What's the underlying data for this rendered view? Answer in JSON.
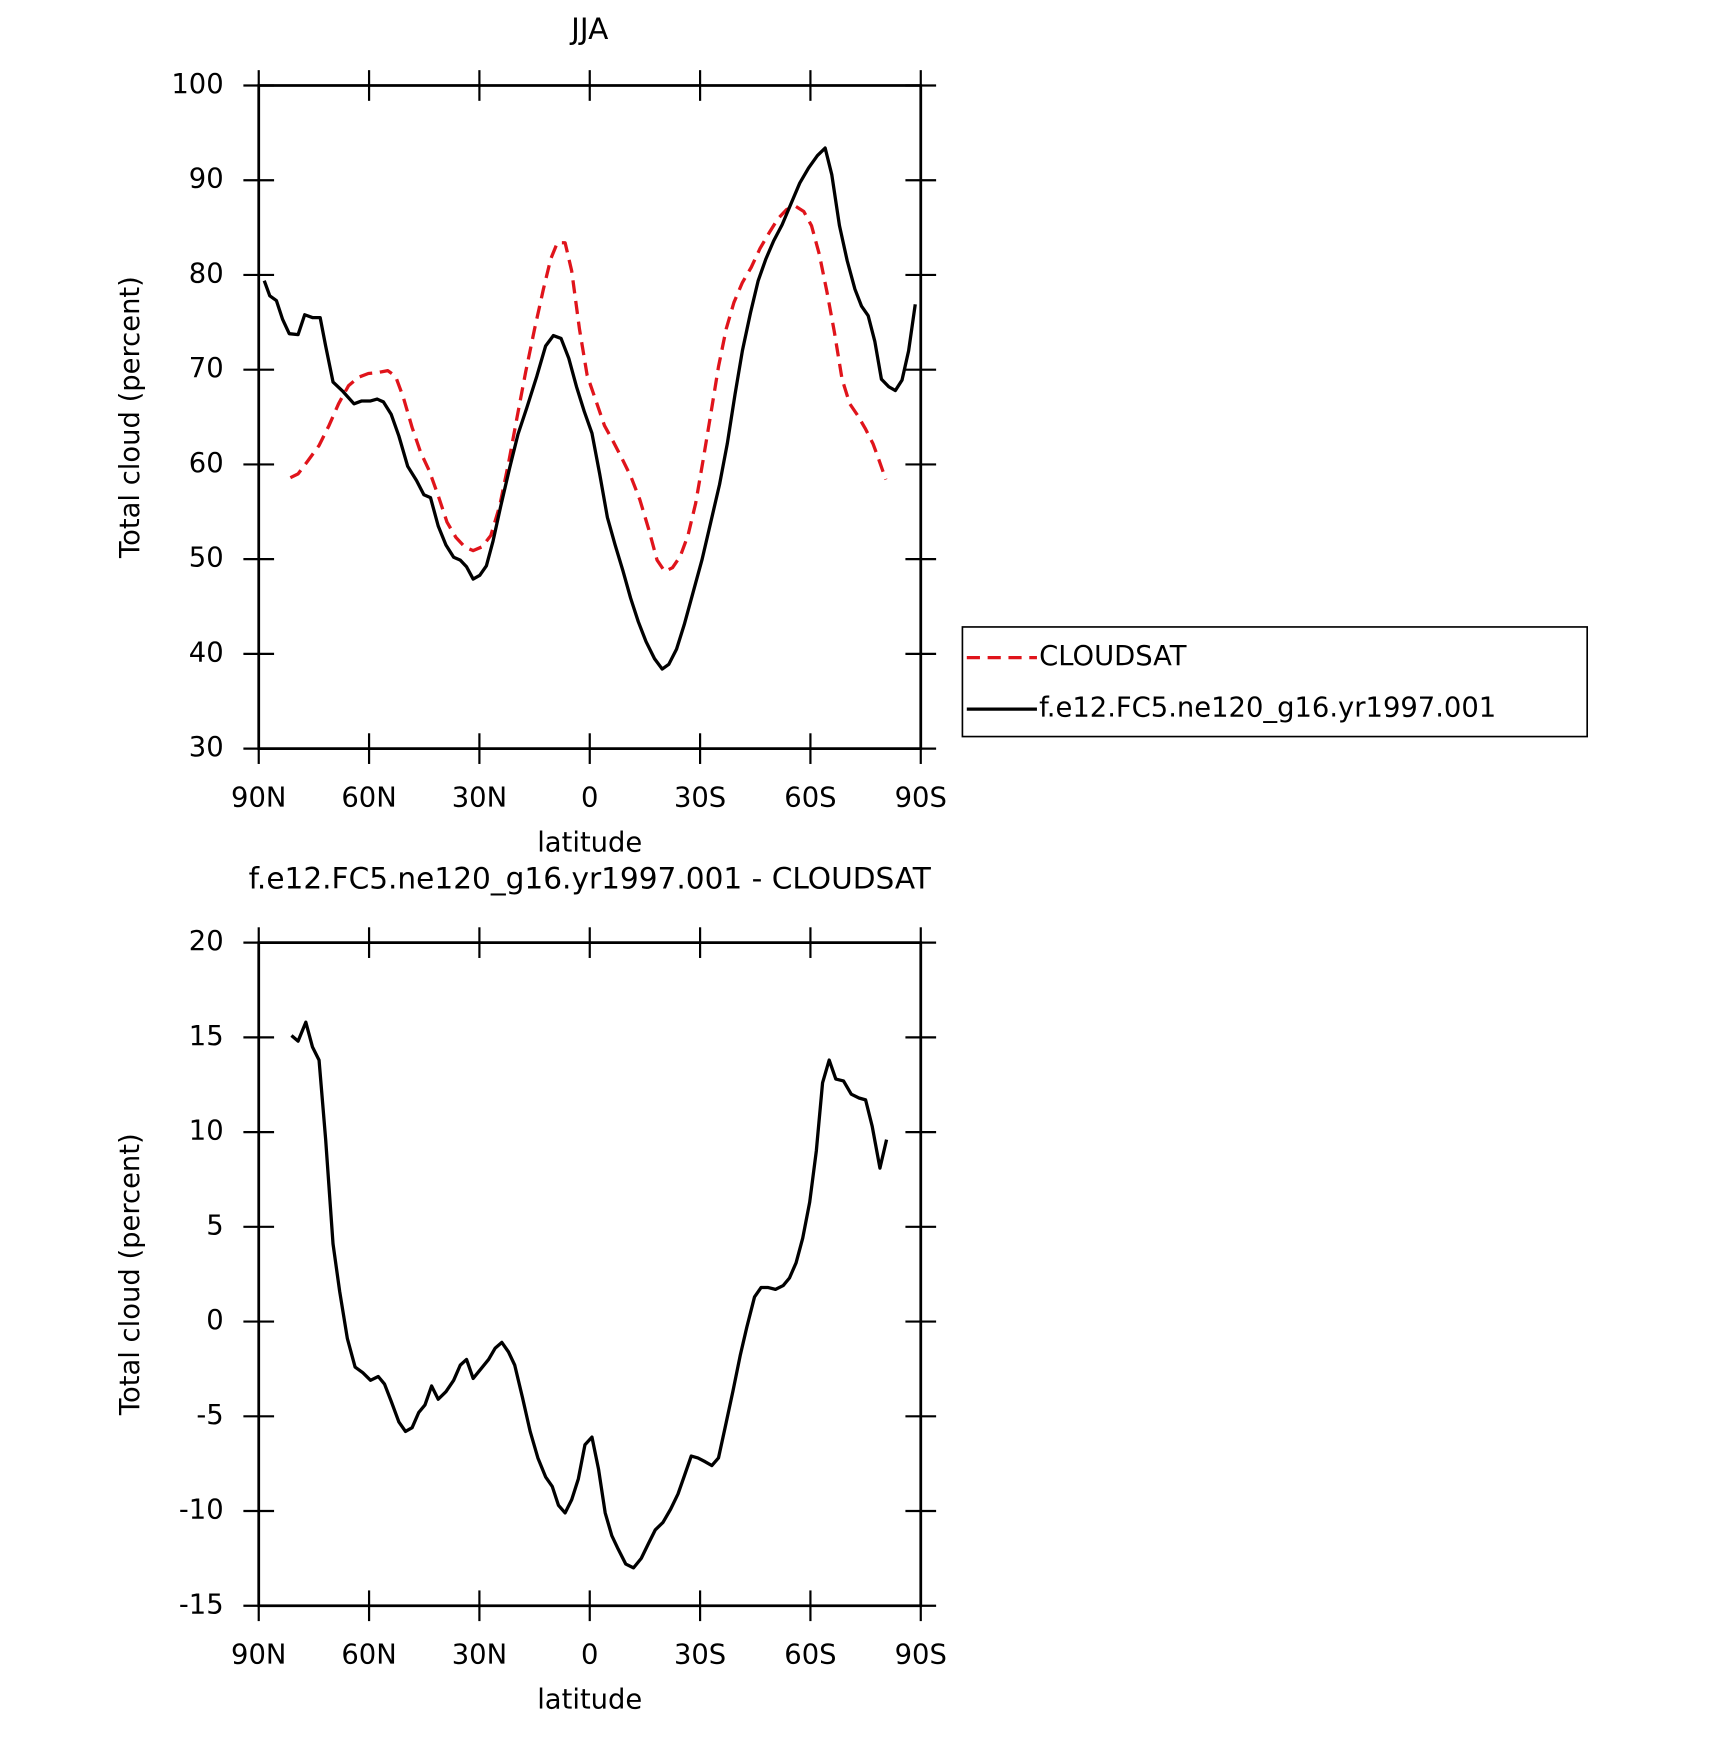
{
  "chart_data": [
    {
      "type": "line",
      "title": "JJA",
      "ylabel": "Total cloud (percent)",
      "xlabel": "latitude",
      "xlim": [
        90,
        -90
      ],
      "ylim": [
        30,
        100
      ],
      "xticks": [
        {
          "value": 90,
          "label": "90N"
        },
        {
          "value": 60,
          "label": "60N"
        },
        {
          "value": 30,
          "label": "30N"
        },
        0,
        {
          "value": -30,
          "label": "30S"
        },
        {
          "value": -60,
          "label": "60S"
        },
        {
          "value": -90,
          "label": "90S"
        }
      ],
      "yticks": [
        30,
        40,
        50,
        60,
        70,
        80,
        90,
        100
      ],
      "legend": "outside right",
      "series": [
        {
          "name": "CLOUDSAT",
          "color": "#e0141b",
          "style": "dashed",
          "x": [
            81.4,
            79.3,
            76.6,
            73.6,
            70.9,
            68.3,
            65.6,
            62.9,
            60.2,
            57.6,
            54.9,
            52.8,
            50.7,
            48.3,
            46.0,
            43.6,
            41.2,
            38.8,
            36.4,
            34.0,
            31.7,
            29.3,
            26.9,
            24.5,
            22.1,
            19.8,
            17.4,
            15.0,
            12.6,
            10.6,
            8.8,
            6.7,
            4.9,
            2.8,
            0.7,
            -1.7,
            -4.0,
            -6.4,
            -8.8,
            -11.2,
            -13.6,
            -16.0,
            -18.3,
            -20.4,
            -22.5,
            -24.6,
            -26.7,
            -28.8,
            -30.8,
            -32.9,
            -35.0,
            -37.1,
            -39.2,
            -41.5,
            -43.9,
            -46.3,
            -48.7,
            -51.1,
            -53.5,
            -55.8,
            -58.2,
            -60.3,
            -62.4,
            -64.5,
            -66.5,
            -68.6,
            -70.7,
            -72.8,
            -74.9,
            -77.0,
            -78.7,
            -80.5
          ],
          "values": [
            58.6,
            59.0,
            60.4,
            62.0,
            64.1,
            66.4,
            68.3,
            69.2,
            69.6,
            69.7,
            69.9,
            69.3,
            67.1,
            63.9,
            61.3,
            59.3,
            56.7,
            53.9,
            52.3,
            51.3,
            50.9,
            51.3,
            52.5,
            55.6,
            60.1,
            64.9,
            69.8,
            74.3,
            78.5,
            81.7,
            83.4,
            83.4,
            80.4,
            74.3,
            69.4,
            66.7,
            64.1,
            62.4,
            60.6,
            58.7,
            56.3,
            53.2,
            49.9,
            48.7,
            49.1,
            50.3,
            52.5,
            55.9,
            60.4,
            65.3,
            70.3,
            74.3,
            77.1,
            79.2,
            80.8,
            82.8,
            84.4,
            85.9,
            86.9,
            87.3,
            86.7,
            85.2,
            82.2,
            78.2,
            74.0,
            69.0,
            66.4,
            65.2,
            63.8,
            62.2,
            60.4,
            58.4
          ]
        },
        {
          "name": "f.e12.FC5.ne120_g16.yr1997.001",
          "color": "#000000",
          "style": "solid",
          "x": [
            88.5,
            87.0,
            85.2,
            83.5,
            81.7,
            79.3,
            77.5,
            75.4,
            73.3,
            71.8,
            69.8,
            67.1,
            64.1,
            62.0,
            59.6,
            57.8,
            56.1,
            54.0,
            51.9,
            49.5,
            47.1,
            45.1,
            43.3,
            41.2,
            39.1,
            37.0,
            35.2,
            33.5,
            31.7,
            29.9,
            28.1,
            26.3,
            24.2,
            21.8,
            19.5,
            17.1,
            14.4,
            12.0,
            9.9,
            7.8,
            5.7,
            3.6,
            1.5,
            -0.6,
            -2.7,
            -4.8,
            -6.9,
            -9.0,
            -11.1,
            -13.2,
            -15.3,
            -17.6,
            -19.7,
            -21.5,
            -23.6,
            -25.7,
            -28.1,
            -30.5,
            -32.9,
            -35.3,
            -37.4,
            -39.5,
            -41.5,
            -43.7,
            -45.8,
            -47.9,
            -50.0,
            -52.3,
            -54.7,
            -57.1,
            -59.5,
            -61.9,
            -64.0,
            -65.8,
            -67.9,
            -70.0,
            -72.1,
            -73.9,
            -75.7,
            -77.5,
            -79.3,
            -81.3,
            -83.1,
            -84.9,
            -86.7,
            -88.5
          ],
          "values": [
            79.4,
            77.8,
            77.3,
            75.3,
            73.8,
            73.7,
            75.8,
            75.5,
            75.5,
            72.5,
            68.7,
            67.7,
            66.4,
            66.7,
            66.7,
            66.9,
            66.6,
            65.3,
            63.0,
            59.8,
            58.3,
            56.8,
            56.5,
            53.5,
            51.5,
            50.2,
            49.9,
            49.2,
            47.9,
            48.3,
            49.3,
            51.9,
            55.6,
            59.6,
            63.2,
            66.0,
            69.3,
            72.5,
            73.6,
            73.3,
            71.2,
            68.2,
            65.6,
            63.3,
            59.0,
            54.4,
            51.5,
            48.8,
            45.9,
            43.4,
            41.3,
            39.5,
            38.4,
            38.9,
            40.5,
            43.1,
            46.5,
            49.9,
            53.9,
            57.9,
            62.2,
            67.4,
            72.0,
            76.0,
            79.4,
            81.7,
            83.6,
            85.3,
            87.5,
            89.7,
            91.3,
            92.6,
            93.4,
            90.6,
            85.2,
            81.5,
            78.5,
            76.7,
            75.7,
            73.0,
            69.0,
            68.2,
            67.8,
            68.9,
            72.0,
            76.9
          ]
        }
      ]
    },
    {
      "type": "line",
      "title": "f.e12.FC5.ne120_g16.yr1997.001 - CLOUDSAT",
      "ylabel": "Total cloud (percent)",
      "xlabel": "latitude",
      "xlim": [
        90,
        -90
      ],
      "ylim": [
        -15,
        20
      ],
      "xticks": [
        {
          "value": 90,
          "label": "90N"
        },
        {
          "value": 60,
          "label": "60N"
        },
        {
          "value": 30,
          "label": "30N"
        },
        0,
        {
          "value": -30,
          "label": "30S"
        },
        {
          "value": -60,
          "label": "60S"
        },
        {
          "value": -90,
          "label": "90S"
        }
      ],
      "yticks": [
        -15,
        -10,
        -5,
        0,
        5,
        10,
        15,
        20
      ],
      "series": [
        {
          "color": "#000000",
          "style": "solid",
          "x": [
            81.1,
            79.3,
            77.2,
            75.4,
            73.6,
            71.8,
            69.8,
            68.0,
            65.9,
            63.8,
            61.7,
            59.6,
            57.5,
            55.8,
            54.0,
            51.9,
            50.1,
            48.3,
            46.5,
            44.8,
            43.0,
            41.2,
            39.1,
            37.0,
            35.2,
            33.5,
            31.7,
            29.6,
            27.5,
            25.7,
            23.9,
            22.1,
            20.4,
            18.3,
            16.2,
            14.1,
            12.0,
            10.2,
            8.5,
            6.7,
            4.9,
            3.1,
            1.3,
            -0.6,
            -2.4,
            -4.2,
            -6.0,
            -7.7,
            -9.8,
            -11.9,
            -14.0,
            -16.0,
            -17.8,
            -19.9,
            -22.0,
            -24.0,
            -25.8,
            -27.6,
            -29.4,
            -31.4,
            -33.2,
            -35.0,
            -36.8,
            -38.9,
            -40.9,
            -42.7,
            -44.8,
            -46.6,
            -48.4,
            -50.5,
            -52.6,
            -54.3,
            -56.1,
            -57.9,
            -59.8,
            -61.6,
            -63.3,
            -65.1,
            -66.9,
            -69.0,
            -71.1,
            -73.2,
            -75.0,
            -76.8,
            -78.9,
            -80.7
          ],
          "values": [
            15.1,
            14.8,
            15.8,
            14.5,
            13.8,
            9.6,
            4.1,
            1.6,
            -0.9,
            -2.4,
            -2.7,
            -3.1,
            -2.9,
            -3.3,
            -4.2,
            -5.3,
            -5.8,
            -5.6,
            -4.8,
            -4.4,
            -3.4,
            -4.1,
            -3.7,
            -3.1,
            -2.3,
            -2.0,
            -3.0,
            -2.5,
            -2.0,
            -1.4,
            -1.1,
            -1.6,
            -2.3,
            -4.0,
            -5.8,
            -7.2,
            -8.2,
            -8.7,
            -9.7,
            -10.1,
            -9.4,
            -8.3,
            -6.5,
            -6.1,
            -7.8,
            -10.1,
            -11.3,
            -12.0,
            -12.8,
            -13.0,
            -12.5,
            -11.7,
            -11.0,
            -10.6,
            -9.9,
            -9.1,
            -8.1,
            -7.1,
            -7.2,
            -7.4,
            -7.6,
            -7.2,
            -5.6,
            -3.7,
            -1.8,
            -0.3,
            1.3,
            1.8,
            1.8,
            1.7,
            1.9,
            2.3,
            3.1,
            4.4,
            6.3,
            9.0,
            12.6,
            13.8,
            12.8,
            12.7,
            12.0,
            11.8,
            11.7,
            10.3,
            8.1,
            9.6
          ]
        }
      ]
    }
  ]
}
